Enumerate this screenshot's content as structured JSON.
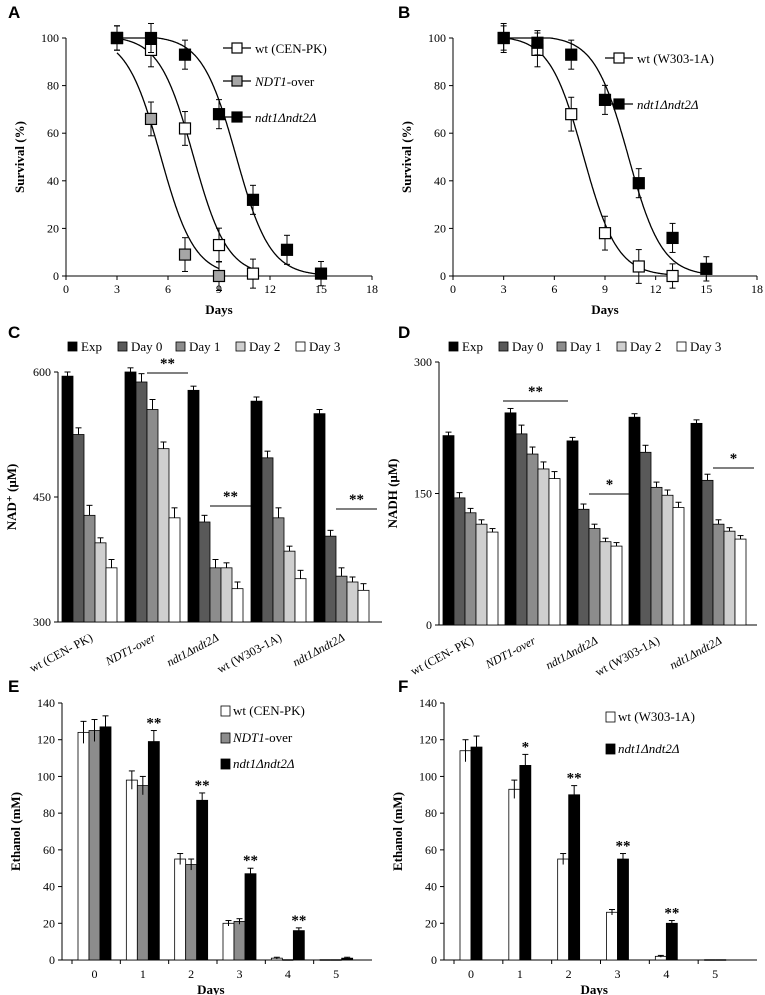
{
  "panels": [
    {
      "id": "A",
      "type": "line",
      "xlabel": "Days",
      "ylabel": "Survival  (%)",
      "xlim": [
        0,
        18
      ],
      "ylim": [
        0,
        100
      ],
      "xticks": [
        "0",
        "3",
        "6",
        "9",
        "12",
        "15",
        "18"
      ],
      "yticks": [
        "0",
        "20",
        "40",
        "60",
        "80",
        "100"
      ],
      "series": [
        {
          "name": "wt (CEN-PK)",
          "label_parts": [
            {
              "t": "wt (CEN-PK)",
              "i": false
            }
          ],
          "marker": "white",
          "x": [
            3,
            5,
            7,
            9,
            11
          ],
          "y": [
            100,
            95,
            62,
            13,
            1
          ],
          "err": [
            3,
            5,
            5,
            5,
            4
          ]
        },
        {
          "name": "NDT1-over",
          "label_parts": [
            {
              "t": "NDT1",
              "i": true
            },
            {
              "t": "-over",
              "i": false
            }
          ],
          "marker": "gray",
          "x": [
            3,
            5,
            7,
            9
          ],
          "y": [
            100,
            66,
            9,
            0
          ],
          "err": [
            3,
            5,
            5,
            4
          ]
        },
        {
          "name": "ndt1Δndt2Δ",
          "label_parts": [
            {
              "t": "ndt1Δndt2Δ",
              "i": true
            }
          ],
          "marker": "black",
          "x": [
            3,
            5,
            7,
            9,
            11,
            13,
            15
          ],
          "y": [
            100,
            100,
            93,
            68,
            32,
            11,
            1
          ],
          "err": [
            3,
            4,
            4,
            4,
            4,
            4,
            3
          ]
        }
      ]
    },
    {
      "id": "B",
      "type": "line",
      "xlabel": "Days",
      "ylabel": "Survival  (%)",
      "xlim": [
        0,
        18
      ],
      "ylim": [
        0,
        100
      ],
      "xticks": [
        "0",
        "3",
        "6",
        "9",
        "12",
        "15",
        "18"
      ],
      "yticks": [
        "0",
        "20",
        "40",
        "60",
        "80",
        "100"
      ],
      "series": [
        {
          "name": "wt (W303-1A)",
          "label_parts": [
            {
              "t": "wt (W303-1A)",
              "i": false
            }
          ],
          "marker": "white",
          "x": [
            3,
            5,
            7,
            9,
            11,
            13
          ],
          "y": [
            100,
            95,
            68,
            18,
            4,
            0
          ],
          "err": [
            4,
            5,
            5,
            5,
            5,
            3
          ]
        },
        {
          "name": "ndt1Δndt2Δ",
          "label_parts": [
            {
              "t": "ndt1Δndt2Δ",
              "i": true
            }
          ],
          "marker": "black",
          "x": [
            3,
            5,
            7,
            9,
            11,
            13,
            15
          ],
          "y": [
            100,
            98,
            93,
            74,
            39,
            16,
            3
          ],
          "err": [
            3,
            3,
            4,
            4,
            4,
            4,
            3
          ]
        }
      ]
    },
    {
      "id": "C",
      "type": "bar",
      "ylabel": "NAD⁺ (μM)",
      "ylim": [
        300,
        600
      ],
      "yticks": [
        "300",
        "450",
        "600"
      ],
      "categories": [
        "wt (CEN- PK)",
        "NDT1-over",
        "ndt1Δndt2Δ",
        "wt  (W303-1A)",
        "ndt1Δndt2Δ"
      ],
      "cat_italic": [
        false,
        true,
        true,
        false,
        true
      ],
      "series": [
        {
          "name": "Exp",
          "fill": "black",
          "values": [
            595,
            600,
            578,
            565,
            550
          ],
          "err": [
            5,
            5,
            5,
            5,
            5
          ]
        },
        {
          "name": "Day 0",
          "fill": "dgray",
          "values": [
            525,
            588,
            420,
            497,
            403
          ],
          "err": [
            8,
            10,
            8,
            8,
            7
          ]
        },
        {
          "name": "Day 1",
          "fill": "mgray",
          "values": [
            428,
            555,
            365,
            425,
            355
          ],
          "err": [
            12,
            12,
            10,
            12,
            10
          ]
        },
        {
          "name": "Day 2",
          "fill": "lgray",
          "values": [
            395,
            508,
            365,
            385,
            348
          ],
          "err": [
            6,
            8,
            6,
            6,
            6
          ]
        },
        {
          "name": "Day 3",
          "fill": "white",
          "values": [
            365,
            425,
            340,
            352,
            338
          ],
          "err": [
            10,
            12,
            8,
            10,
            8
          ]
        }
      ],
      "sig": [
        {
          "text": "**",
          "from": 1,
          "to": 1
        },
        {
          "text": "**",
          "from": 2,
          "to": 2
        },
        {
          "text": "**",
          "from": 4,
          "to": 4
        }
      ]
    },
    {
      "id": "D",
      "type": "bar",
      "ylabel": "NADH (μM)",
      "ylim": [
        0,
        300
      ],
      "yticks": [
        "0",
        "150",
        "300"
      ],
      "categories": [
        "wt (CEN- PK)",
        "NDT1-over",
        "ndt1Δndt2Δ",
        "wt  (W303-1A)",
        "ndt1Δndt2Δ"
      ],
      "cat_italic": [
        false,
        true,
        true,
        false,
        true
      ],
      "series": [
        {
          "name": "Exp",
          "fill": "black",
          "values": [
            216,
            242,
            210,
            237,
            230
          ],
          "err": [
            4,
            5,
            4,
            4,
            4
          ]
        },
        {
          "name": "Day 0",
          "fill": "dgray",
          "values": [
            145,
            218,
            132,
            197,
            165
          ],
          "err": [
            6,
            10,
            6,
            8,
            7
          ]
        },
        {
          "name": "Day 1",
          "fill": "mgray",
          "values": [
            128,
            195,
            110,
            157,
            115
          ],
          "err": [
            5,
            8,
            5,
            6,
            5
          ]
        },
        {
          "name": "Day 2",
          "fill": "lgray",
          "values": [
            115,
            178,
            95,
            148,
            107
          ],
          "err": [
            5,
            8,
            4,
            6,
            4
          ]
        },
        {
          "name": "Day 3",
          "fill": "white",
          "values": [
            106,
            167,
            90,
            134,
            98
          ],
          "err": [
            4,
            8,
            4,
            6,
            4
          ]
        }
      ],
      "sig": [
        {
          "text": "**",
          "from": 0,
          "to": 1
        },
        {
          "text": "*",
          "from": 2,
          "to": 2
        },
        {
          "text": "*",
          "from": 4,
          "to": 4
        }
      ]
    },
    {
      "id": "E",
      "type": "bar",
      "xlabel": "Days",
      "ylabel": "Ethanol  (mM)",
      "ylim": [
        0,
        140
      ],
      "yticks": [
        "0",
        "20",
        "40",
        "60",
        "80",
        "100",
        "120",
        "140"
      ],
      "categories": [
        "0",
        "1",
        "2",
        "3",
        "4",
        "5"
      ],
      "series": [
        {
          "name": "wt (CEN-PK)",
          "label_parts": [
            {
              "t": "wt (CEN-PK)",
              "i": false
            }
          ],
          "fill": "white",
          "values": [
            124,
            98,
            55,
            20,
            1,
            0
          ],
          "err": [
            6,
            5,
            3,
            1.5,
            0.5,
            0
          ]
        },
        {
          "name": "NDT1-over",
          "label_parts": [
            {
              "t": "NDT1",
              "i": true
            },
            {
              "t": "-over",
              "i": false
            }
          ],
          "fill": "mgray",
          "values": [
            125,
            95,
            52,
            21,
            0,
            0
          ],
          "err": [
            6,
            5,
            3,
            1.5,
            0,
            0
          ]
        },
        {
          "name": "ndt1Δndt2Δ",
          "label_parts": [
            {
              "t": "ndt1Δndt2Δ",
              "i": true
            }
          ],
          "fill": "black",
          "values": [
            127,
            119,
            87,
            47,
            16,
            1
          ],
          "err": [
            6,
            6,
            4,
            3,
            1.5,
            0.5
          ]
        }
      ],
      "sig": [
        {
          "text": "**",
          "cat": 1
        },
        {
          "text": "**",
          "cat": 2
        },
        {
          "text": "**",
          "cat": 3
        },
        {
          "text": "**",
          "cat": 4
        }
      ]
    },
    {
      "id": "F",
      "type": "bar",
      "xlabel": "Days",
      "ylabel": "Ethanol  (mM)",
      "ylim": [
        0,
        140
      ],
      "yticks": [
        "0",
        "20",
        "40",
        "60",
        "80",
        "100",
        "120",
        "140"
      ],
      "categories": [
        "0",
        "1",
        "2",
        "3",
        "4",
        "5"
      ],
      "series": [
        {
          "name": "wt (W303-1A)",
          "label_parts": [
            {
              "t": "wt (W303-1A)",
              "i": false
            }
          ],
          "fill": "white",
          "values": [
            114,
            93,
            55,
            26,
            2,
            0
          ],
          "err": [
            6,
            5,
            3,
            1.5,
            0.5,
            0
          ]
        },
        {
          "name": "ndt1Δndt2Δ",
          "label_parts": [
            {
              "t": "ndt1Δndt2Δ",
              "i": true
            }
          ],
          "fill": "black",
          "values": [
            116,
            106,
            90,
            55,
            20,
            0
          ],
          "err": [
            6,
            6,
            5,
            3,
            1.5,
            0
          ]
        }
      ],
      "sig": [
        {
          "text": "*",
          "cat": 1
        },
        {
          "text": "**",
          "cat": 2
        },
        {
          "text": "**",
          "cat": 3
        },
        {
          "text": "**",
          "cat": 4
        }
      ]
    }
  ],
  "colors": {
    "black": "#000000",
    "dgray": "#595959",
    "mgray": "#8c8c8c",
    "lgray": "#cfcfcf",
    "white": "#ffffff",
    "gray": "#a6a6a6"
  }
}
